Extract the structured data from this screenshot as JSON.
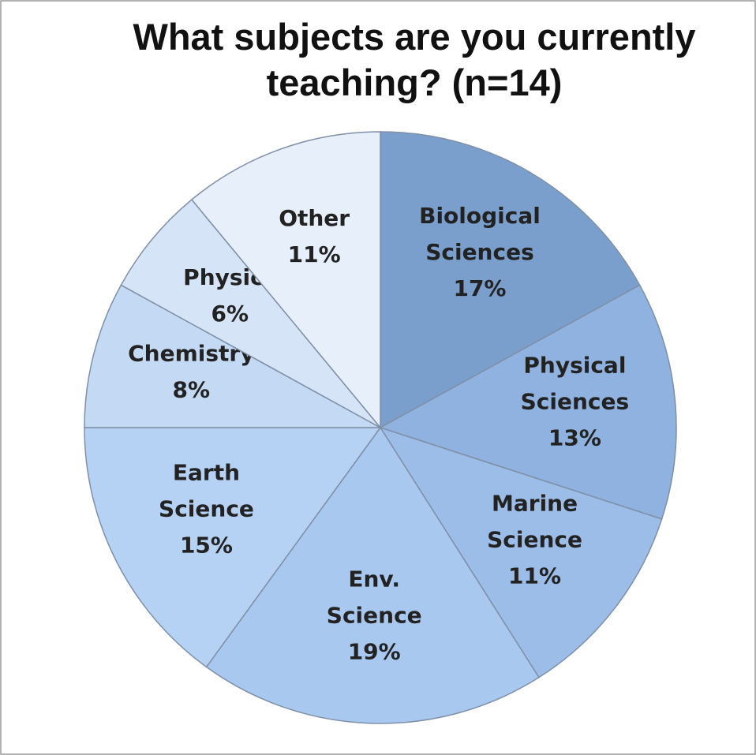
{
  "chart_data": {
    "type": "pie",
    "title": "What subjects are you currently teaching? (n=14)",
    "categories": [
      "Biological Sciences",
      "Physical Sciences",
      "Marine Science",
      "Env. Science",
      "Earth Science",
      "Chemistry",
      "Physics",
      "Other"
    ],
    "values": [
      17,
      13,
      11,
      19,
      15,
      8,
      6,
      11
    ],
    "value_labels": [
      "17%",
      "13%",
      "11%",
      "19%",
      "15%",
      "8%",
      "6%",
      "11%"
    ],
    "colors": [
      "#7b9fcc",
      "#8fb2e0",
      "#9cbde8",
      "#a9c8f0",
      "#b5d1f4",
      "#c4d9f4",
      "#d6e4f7",
      "#e7effb"
    ]
  }
}
